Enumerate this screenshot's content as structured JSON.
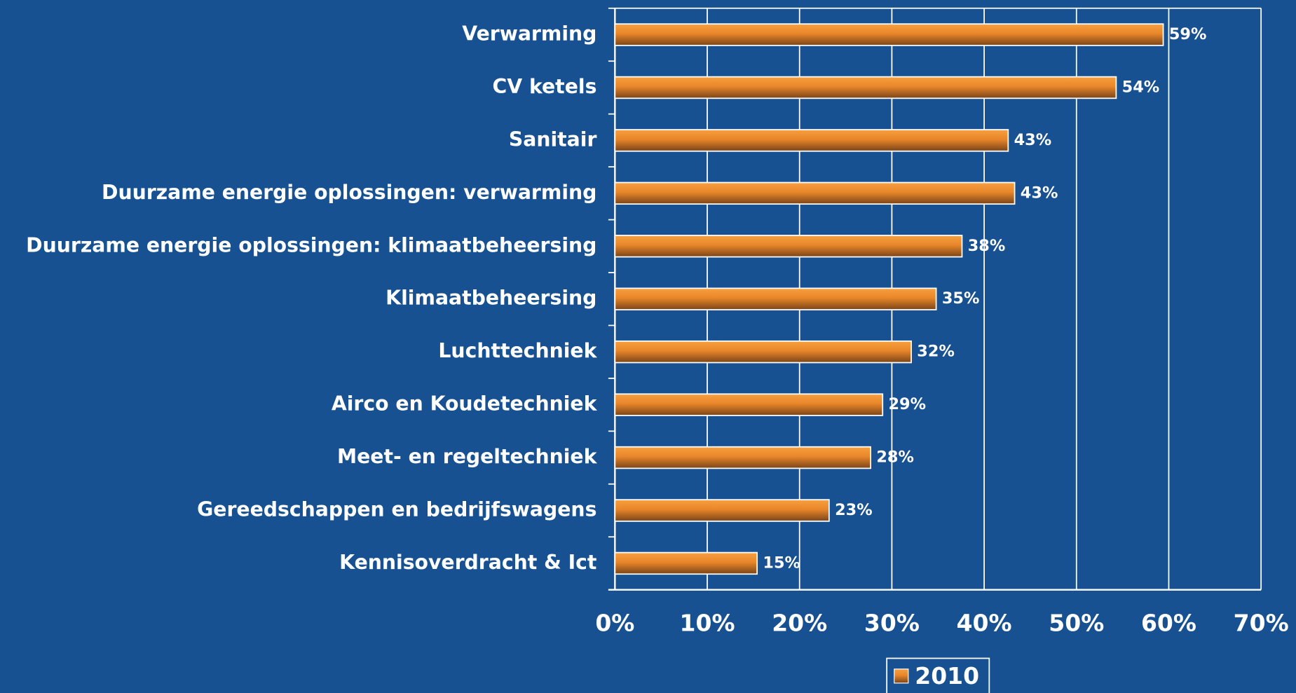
{
  "chart_data": {
    "type": "hbar",
    "categories": [
      "Verwarming",
      "CV ketels",
      "Sanitair",
      "Duurzame energie oplossingen: verwarming",
      "Duurzame energie oplossingen: klimaatbeheersing",
      "Klimaatbeheersing",
      "Luchttechniek",
      "Airco en Koudetechniek",
      "Meet- en regeltechniek",
      "Gereedschappen en bedrijfswagens",
      "Kennisoverdracht & Ict"
    ],
    "series": [
      {
        "name": "2010",
        "color": "#e8862a",
        "values": [
          59.4,
          54.3,
          42.6,
          43.3,
          37.6,
          34.8,
          32.1,
          29.0,
          27.7,
          23.2,
          15.4
        ],
        "value_labels": [
          "59%",
          "54%",
          "43%",
          "43%",
          "38%",
          "35%",
          "32%",
          "29%",
          "28%",
          "23%",
          "15%"
        ]
      }
    ],
    "xlim": [
      0,
      70
    ],
    "xticks": [
      {
        "value": 0,
        "label": "0%"
      },
      {
        "value": 10,
        "label": "10%"
      },
      {
        "value": 20,
        "label": "20%"
      },
      {
        "value": 30,
        "label": "30%"
      },
      {
        "value": 40,
        "label": "40%"
      },
      {
        "value": 50,
        "label": "50%"
      },
      {
        "value": 60,
        "label": "60%"
      },
      {
        "value": 70,
        "label": "70%"
      }
    ],
    "grid": true,
    "legend": "bottom"
  }
}
